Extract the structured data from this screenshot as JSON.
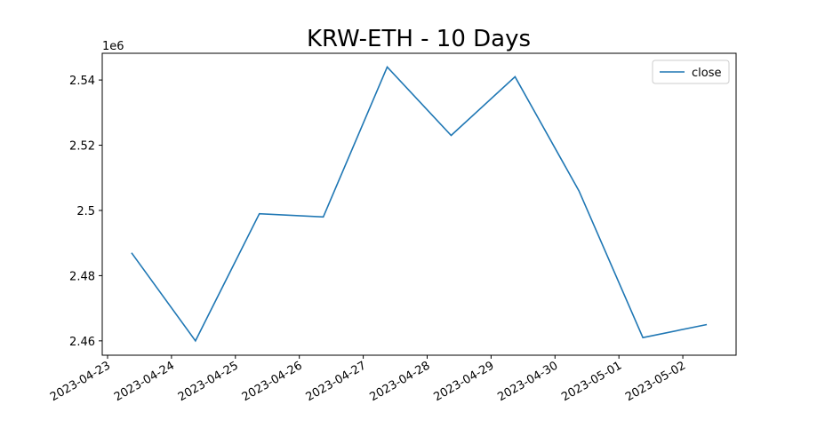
{
  "chart_data": {
    "type": "line",
    "title": "KRW-ETH - 10 Days",
    "y_offset_label": "1e6",
    "x": [
      "2023-04-23T09:00",
      "2023-04-24T09:00",
      "2023-04-25T09:00",
      "2023-04-26T09:00",
      "2023-04-27T09:00",
      "2023-04-28T09:00",
      "2023-04-29T09:00",
      "2023-04-30T09:00",
      "2023-05-01T09:00",
      "2023-05-02T09:00"
    ],
    "series": [
      {
        "name": "close",
        "color": "#1f77b4",
        "values": [
          2.487,
          2.46,
          2.499,
          2.498,
          2.544,
          2.523,
          2.541,
          2.506,
          2.461,
          2.465
        ]
      }
    ],
    "xlim": [
      "2023-04-22T22:00",
      "2023-05-02T20:00"
    ],
    "xticks": [
      "2023-04-23",
      "2023-04-24",
      "2023-04-25",
      "2023-04-26",
      "2023-04-27",
      "2023-04-28",
      "2023-04-29",
      "2023-04-30",
      "2023-05-01",
      "2023-05-02"
    ],
    "ylim": [
      2.4556,
      2.5482
    ],
    "yticks": [
      2.46,
      2.48,
      2.5,
      2.52,
      2.54
    ],
    "legend": "upper right"
  }
}
